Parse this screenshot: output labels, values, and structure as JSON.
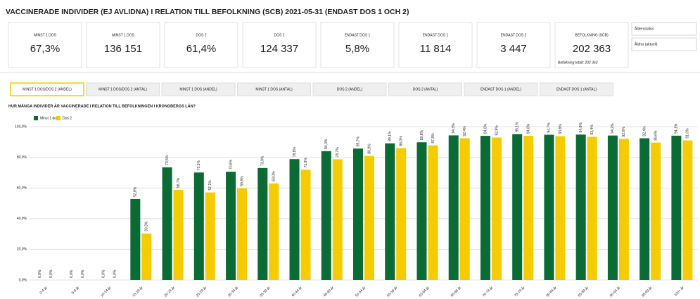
{
  "header": {
    "title": "VACCINERADE INDIVIDER (EJ AVLIDNA) I RELATION TILL BEFOLKNING (SCB) 2021-05-31 (ENDAST DOS 1 OCH 2)"
  },
  "kpis": [
    {
      "label": "MINST 1 DOS",
      "value": "67,3%"
    },
    {
      "label": "MINST 1 DOS",
      "value": "136 151"
    },
    {
      "label": "DOS 2",
      "value": "61,4%"
    },
    {
      "label": "DOS 2",
      "value": "124 337"
    },
    {
      "label": "ENDAST DOS 1",
      "value": "5,8%"
    },
    {
      "label": "ENDAST DOS 1",
      "value": "11 814"
    },
    {
      "label": "ENDAST DOS 2",
      "value": "3 447"
    },
    {
      "label": "BEFOLKNING (SCB)",
      "value": "202 363",
      "note": "Befolkning totalt: 202 363"
    }
  ],
  "filters": [
    "Åldersstatus",
    "Åldrar (aktuell)"
  ],
  "tabs": [
    "MINST 1 DOS/DOS 2 (ANDEL)",
    "MINST 1 DOS/DOS 2 (ANTAL)",
    "MINST 1 DOS (ANDEL)",
    "MINST 1 DOS (ANTAL)",
    "DOS 2 (ANDEL)",
    "DOS 2 (ANTAL)",
    "ENDAST DOS 1 (ANDEL)",
    "ENDAST DOS 1 (ANTAL)"
  ],
  "chart_data": {
    "type": "bar",
    "title": "HUR MÅNGA INDIVIDER ÄR VACCINERADE I RELATION TILL BEFOLKNINGEN I KRONOBERGS LÄN?",
    "categories": [
      "0-4 år",
      "5-9 år",
      "10-14 år",
      "15-19 år",
      "20-24 år",
      "25-29 år",
      "30-34 år",
      "35-39 år",
      "40-44 år",
      "45-49 år",
      "50-54 år",
      "55-59 år",
      "60-64 år",
      "65-69 år",
      "70-74 år",
      "75-79 år",
      "80-84 år",
      "85-89 år",
      "90-94 år",
      "95-99 år",
      "100+ år"
    ],
    "series": [
      {
        "name": "Minst 1 dos",
        "color": "#0b6b35",
        "values": [
          0,
          0,
          0,
          52.8,
          73.5,
          70.1,
          70.6,
          73.0,
          78.8,
          84.0,
          85.7,
          89.1,
          89.8,
          94.3,
          94.0,
          95.1,
          94.7,
          94.8,
          94.2,
          92.4,
          94.1
        ],
        "value_labels": [
          "0,0%",
          "0,0%",
          "0,0%",
          "52,8%",
          "73,5%",
          "70,1%",
          "70,6%",
          "73,0%",
          "78,8%",
          "84,0%",
          "85,7%",
          "89,1%",
          "89,8%",
          "94,3%",
          "94,0%",
          "95,1%",
          "94,7%",
          "94,8%",
          "94,2%",
          "92,4%",
          "94,1%"
        ]
      },
      {
        "name": "Dos 2",
        "color": "#f5cc00",
        "values": [
          0,
          0,
          0,
          30.3,
          58.7,
          57.1,
          59.8,
          63.0,
          71.9,
          78.7,
          80.9,
          86.0,
          87.8,
          92.4,
          92.9,
          94.0,
          93.8,
          93.4,
          92.0,
          89.6,
          91.0
        ],
        "value_labels": [
          "0,0%",
          "0,0%",
          "0,0%",
          "30,3%",
          "58,7%",
          "57,1%",
          "59,8%",
          "63,0%",
          "71,9%",
          "78,7%",
          "80,9%",
          "86,0%",
          "87,8%",
          "92,4%",
          "92,9%",
          "94,0%",
          "93,8%",
          "93,4%",
          "92,0%",
          "89,6%",
          "91,0%"
        ]
      }
    ],
    "ylim": [
      0,
      100
    ],
    "yticks": [
      {
        "value": 0,
        "label": "0,0%"
      },
      {
        "value": 20,
        "label": "20,0%"
      },
      {
        "value": 40,
        "label": "40,0%"
      },
      {
        "value": 60,
        "label": "60,0%"
      },
      {
        "value": 80,
        "label": "80,0%"
      },
      {
        "value": 100,
        "label": "100,0%"
      }
    ],
    "grid": true
  }
}
